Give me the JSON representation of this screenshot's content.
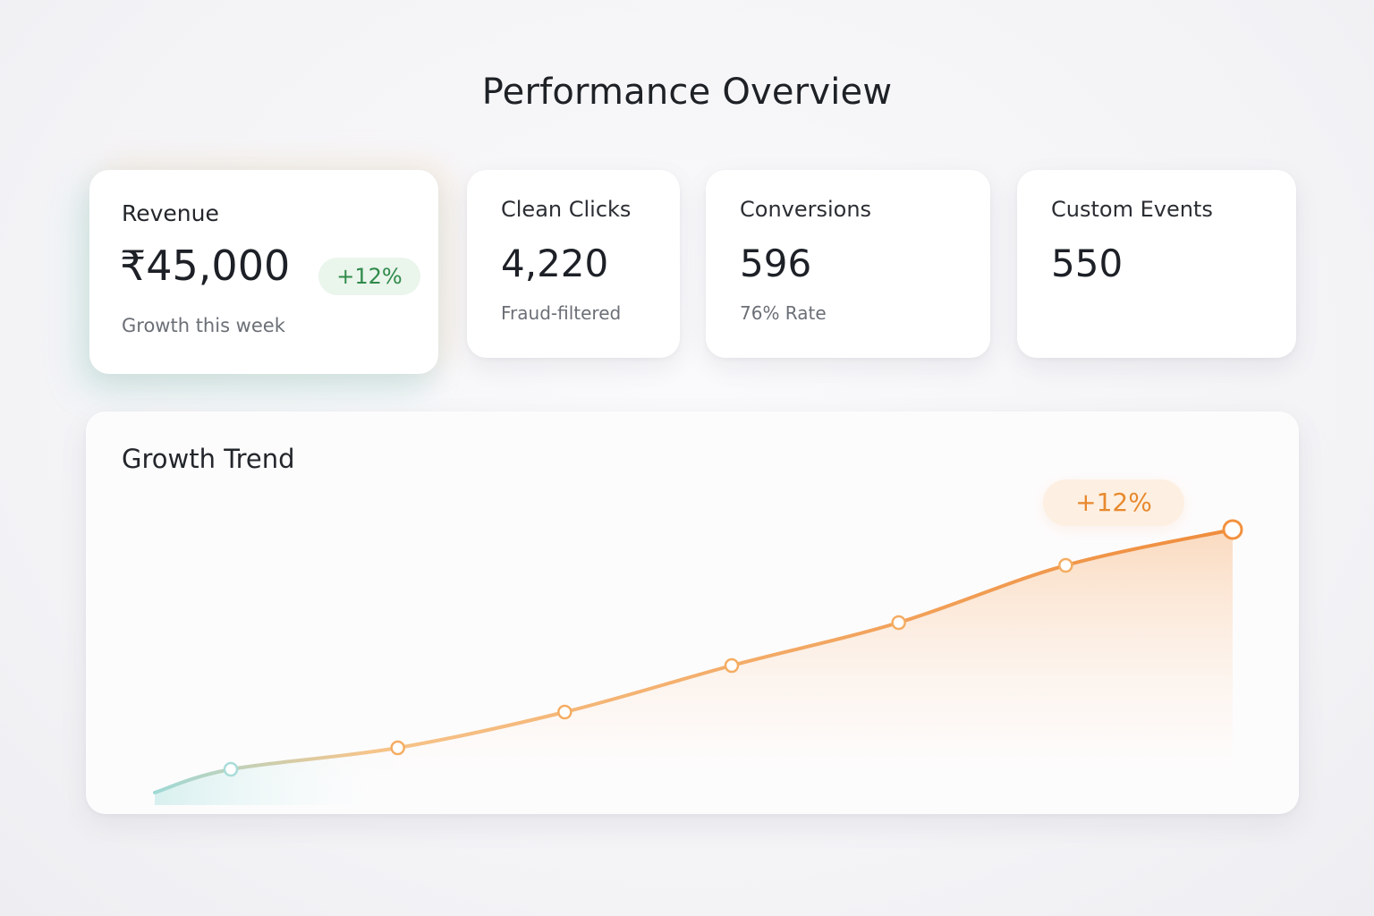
{
  "page": {
    "title": "Performance Overview"
  },
  "cards": {
    "revenue": {
      "label": "Revenue",
      "value": "₹45,000",
      "badge": "+12%",
      "sub": "Growth this week"
    },
    "clicks": {
      "label": "Clean Clicks",
      "value": "4,220",
      "sub": "Fraud-filtered"
    },
    "conversions": {
      "label": "Conversions",
      "value": "596",
      "sub": "76% Rate"
    },
    "events": {
      "label": "Custom Events",
      "value": "550"
    }
  },
  "chart": {
    "title": "Growth Trend",
    "badge": "+12%"
  },
  "colors": {
    "accent_orange": "#f0a055",
    "accent_teal": "#8fd6d0",
    "badge_green": "#2f8a4a"
  },
  "chart_data": {
    "type": "area",
    "title": "Growth Trend",
    "xlabel": "",
    "ylabel": "",
    "x": [
      1,
      2,
      3,
      4,
      5,
      6,
      7
    ],
    "values": [
      5,
      11,
      21,
      34,
      46,
      62,
      72
    ],
    "ylim": [
      0,
      80
    ],
    "grid": false,
    "annotation": "+12%"
  }
}
